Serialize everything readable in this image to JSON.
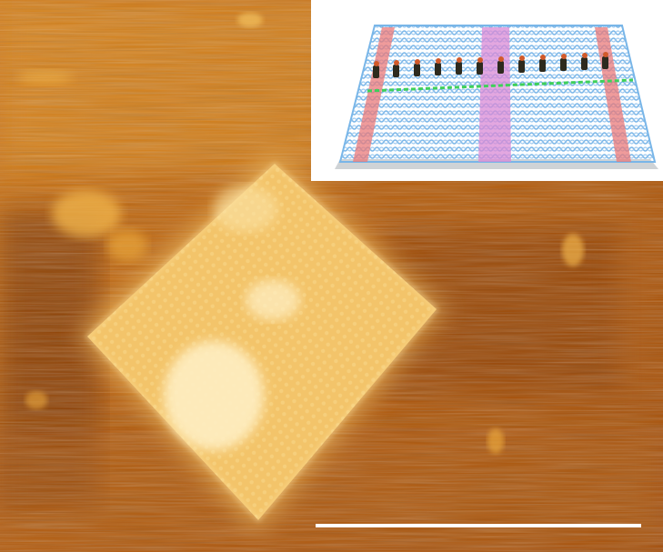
{
  "figure": {
    "kind": "afm-height-image",
    "colormap": {
      "dark": "#6e2a02",
      "mid": "#c8690a",
      "bright": "#f2b73e",
      "highlight": "#fff3c2"
    }
  },
  "inset": {
    "kind": "dna-origami-schematic",
    "colors": {
      "lattice": "#79b6e8",
      "red_stripes": "#ea7a7a",
      "pink_band": "#d98ad6",
      "green_track": "#3fd05a",
      "motifs": "#2d2a1e",
      "motif_accent": "#d25a2a",
      "shadow": "#cfd3d6"
    }
  },
  "scale_bar": {
    "color": "#ffffff"
  }
}
